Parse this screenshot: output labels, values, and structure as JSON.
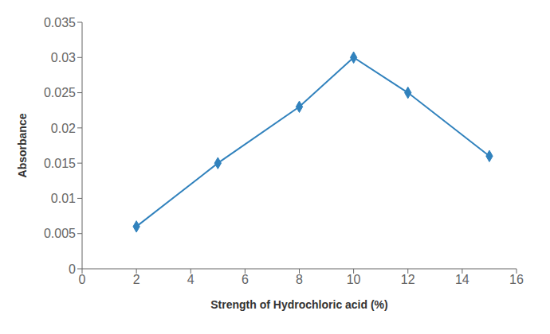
{
  "chart_data": {
    "type": "line",
    "x": [
      2,
      5,
      8,
      10,
      12,
      15
    ],
    "values": [
      0.006,
      0.015,
      0.023,
      0.03,
      0.025,
      0.016
    ],
    "xlabel": "Strength of Hydrochloric acid (%)",
    "ylabel": "Absorbance",
    "xlim": [
      0,
      16
    ],
    "ylim": [
      0,
      0.035
    ],
    "xticks": [
      0,
      2,
      4,
      6,
      8,
      10,
      12,
      14,
      16
    ],
    "yticks": [
      0,
      0.005,
      0.01,
      0.015,
      0.02,
      0.025,
      0.03,
      0.035
    ],
    "marker": "diamond",
    "grid": false
  }
}
